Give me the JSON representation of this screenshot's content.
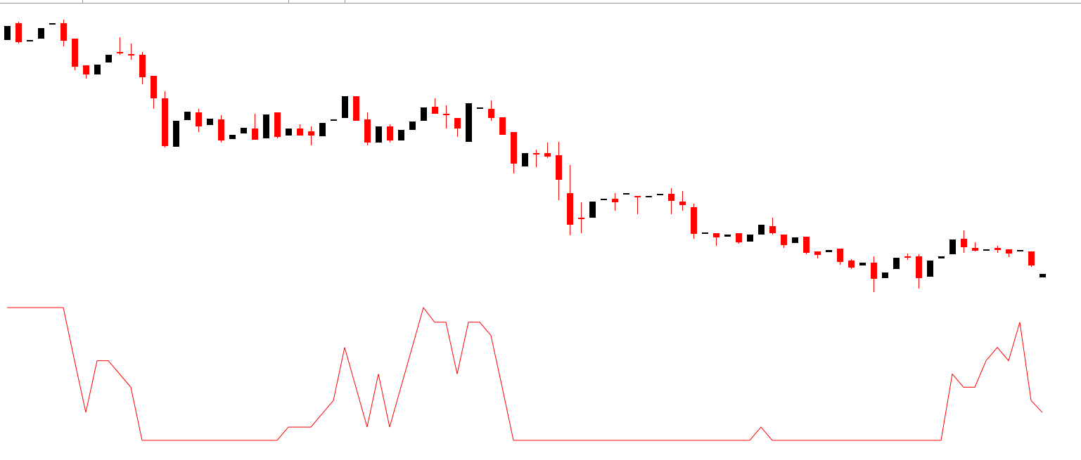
{
  "chart_data": [
    {
      "type": "candlestick",
      "up_color": "#000000",
      "down_color": "#ff0000",
      "ylim": [
        225,
        645
      ],
      "open": [
        598,
        622,
        596,
        600,
        620,
        622,
        600,
        562,
        549,
        566,
        581,
        578,
        577,
        547,
        515,
        446,
        484,
        495,
        477,
        485,
        457,
        465,
        472,
        458,
        495,
        462,
        472,
        468,
        461,
        484,
        487,
        518,
        485,
        452,
        475,
        455,
        470,
        483,
        503,
        493,
        487,
        453,
        501,
        500,
        488,
        467,
        418,
        437,
        437,
        434,
        380,
        345,
        345,
        370,
        372,
        379,
        376,
        374,
        377,
        379,
        368,
        360,
        322,
        323,
        318,
        323,
        311,
        321,
        333,
        321,
        309,
        318,
        297,
        296,
        301,
        284,
        277,
        281,
        259,
        272,
        290,
        290,
        261,
        287,
        293,
        315,
        302,
        298,
        302,
        300,
        297,
        297,
        260
      ],
      "high": [
        618,
        624,
        598,
        615,
        622,
        627,
        600,
        562,
        563,
        577,
        602,
        593,
        581,
        547,
        525,
        483,
        496,
        500,
        486,
        491,
        463,
        473,
        493,
        492,
        495,
        472,
        478,
        475,
        480,
        485,
        518,
        518,
        495,
        475,
        478,
        470,
        482,
        502,
        515,
        505,
        487,
        508,
        502,
        512,
        488,
        467,
        437,
        442,
        452,
        453,
        420,
        367,
        368,
        372,
        380,
        380,
        376,
        376,
        379,
        387,
        383,
        365,
        324,
        323,
        321,
        323,
        321,
        335,
        345,
        321,
        317,
        318,
        297,
        299,
        301,
        286,
        281,
        290,
        267,
        288,
        294,
        293,
        284,
        290,
        314,
        327,
        310,
        300,
        305,
        300,
        299,
        297,
        265
      ],
      "low": [
        598,
        593,
        596,
        600,
        620,
        589,
        555,
        543,
        549,
        566,
        577,
        570,
        535,
        500,
        445,
        446,
        484,
        467,
        477,
        452,
        457,
        465,
        456,
        458,
        458,
        462,
        462,
        448,
        461,
        484,
        487,
        483,
        448,
        452,
        452,
        455,
        470,
        483,
        493,
        472,
        460,
        453,
        501,
        483,
        463,
        408,
        418,
        417,
        430,
        370,
        320,
        323,
        345,
        370,
        355,
        379,
        350,
        374,
        377,
        350,
        355,
        315,
        322,
        305,
        318,
        308,
        311,
        321,
        321,
        302,
        309,
        293,
        287,
        296,
        278,
        272,
        277,
        239,
        259,
        272,
        285,
        244,
        261,
        287,
        293,
        295,
        297,
        298,
        295,
        289,
        297,
        275,
        260
      ],
      "close": [
        618,
        595,
        598,
        615,
        622,
        597,
        560,
        549,
        563,
        577,
        579,
        576,
        545,
        515,
        447,
        483,
        496,
        475,
        486,
        455,
        463,
        473,
        456,
        492,
        460,
        472,
        462,
        462,
        480,
        485,
        518,
        483,
        452,
        475,
        455,
        470,
        482,
        502,
        493,
        491,
        472,
        508,
        502,
        487,
        463,
        422,
        437,
        435,
        432,
        399,
        335,
        343,
        368,
        372,
        367,
        380,
        374,
        376,
        379,
        369,
        363,
        322,
        324,
        317,
        321,
        310,
        321,
        335,
        323,
        306,
        317,
        295,
        292,
        299,
        282,
        274,
        281,
        258,
        267,
        288,
        288,
        259,
        284,
        290,
        314,
        303,
        298,
        300,
        299,
        294,
        299,
        277,
        265
      ]
    },
    {
      "type": "line",
      "color": "#ff0000",
      "ylim": [
        0,
        100
      ],
      "values": [
        100,
        100,
        100,
        100,
        100,
        100,
        60,
        21,
        60,
        60,
        50,
        40,
        0,
        0,
        0,
        0,
        0,
        0,
        0,
        0,
        0,
        0,
        0,
        0,
        0,
        10,
        10,
        10,
        20,
        30,
        70,
        40,
        10,
        50,
        10,
        40,
        70,
        100,
        89,
        89,
        50,
        89,
        89,
        79,
        40,
        0,
        0,
        0,
        0,
        0,
        0,
        0,
        0,
        0,
        0,
        0,
        0,
        0,
        0,
        0,
        0,
        0,
        0,
        0,
        0,
        0,
        0,
        10,
        0,
        0,
        0,
        0,
        0,
        0,
        0,
        0,
        0,
        0,
        0,
        0,
        0,
        0,
        0,
        0,
        50,
        40,
        40,
        60,
        70,
        60,
        89,
        30,
        21
      ]
    }
  ]
}
